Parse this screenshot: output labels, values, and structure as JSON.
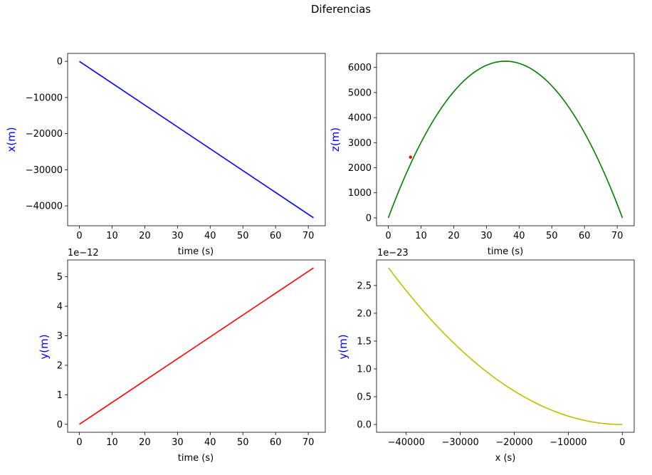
{
  "figure": {
    "title": "Diferencias"
  },
  "chart_data": [
    {
      "type": "line",
      "title": "",
      "xlabel": "time (s)",
      "ylabel": "x(m)",
      "ylabel_color": "#0000ff",
      "xlim": [
        -3.6,
        75.2
      ],
      "ylim": [
        -45500,
        2200
      ],
      "xticks": [
        0,
        10,
        20,
        30,
        40,
        50,
        60,
        70
      ],
      "yticks": [
        -40000,
        -30000,
        -20000,
        -10000,
        0
      ],
      "ytick_labels": [
        "−40000",
        "−30000",
        "−20000",
        "−10000",
        "0"
      ],
      "grid": false,
      "series": [
        {
          "color": "#0000ff",
          "x": [
            0,
            71.6
          ],
          "y": [
            0,
            -43300
          ]
        }
      ]
    },
    {
      "type": "line",
      "title": "",
      "xlabel": "time (s)",
      "ylabel": "z(m)",
      "ylabel_color": "#0000ff",
      "xlim": [
        -3.6,
        75.2
      ],
      "ylim": [
        -315,
        6560
      ],
      "xticks": [
        0,
        10,
        20,
        30,
        40,
        50,
        60,
        70
      ],
      "yticks": [
        0,
        1000,
        2000,
        3000,
        4000,
        5000,
        6000
      ],
      "grid": false,
      "series": [
        {
          "color": "#008000",
          "kind": "parabola",
          "x_end": 71.6,
          "peak_x": 35.8,
          "peak_y": 6250
        },
        {
          "color": "#ff0000",
          "kind": "point",
          "x": [
            6.8
          ],
          "y": [
            2420
          ]
        }
      ]
    },
    {
      "type": "line",
      "title": "",
      "xlabel": "time (s)",
      "ylabel": "y(m)",
      "ylabel_color": "#0000ff",
      "axis_offset": "1e−12",
      "xlim": [
        -3.6,
        75.2
      ],
      "ylim": [
        -0.27,
        5.57
      ],
      "xticks": [
        0,
        10,
        20,
        30,
        40,
        50,
        60,
        70
      ],
      "yticks": [
        0,
        1,
        2,
        3,
        4,
        5
      ],
      "grid": false,
      "series": [
        {
          "color": "#ff0000",
          "x": [
            0,
            71.6
          ],
          "y": [
            0,
            5.3
          ]
        }
      ]
    },
    {
      "type": "line",
      "title": "",
      "xlabel": "x (s)",
      "ylabel": "y(m)",
      "ylabel_color": "#0000ff",
      "axis_offset": "1e−23",
      "xlim": [
        -45500,
        2200
      ],
      "ylim": [
        -0.14,
        2.96
      ],
      "xticks": [
        -40000,
        -30000,
        -20000,
        -10000,
        0
      ],
      "xtick_labels": [
        "−40000",
        "−30000",
        "−20000",
        "−10000",
        "0"
      ],
      "yticks": [
        0.0,
        0.5,
        1.0,
        1.5,
        2.0,
        2.5
      ],
      "ytick_labels": [
        "0.0",
        "0.5",
        "1.0",
        "1.5",
        "2.0",
        "2.5"
      ],
      "grid": false,
      "series": [
        {
          "color": "#bfbf00",
          "kind": "quadratic",
          "x_start": -43300,
          "x_end": 0,
          "y_at_start": 2.82,
          "y_at_end": 0
        }
      ]
    }
  ]
}
